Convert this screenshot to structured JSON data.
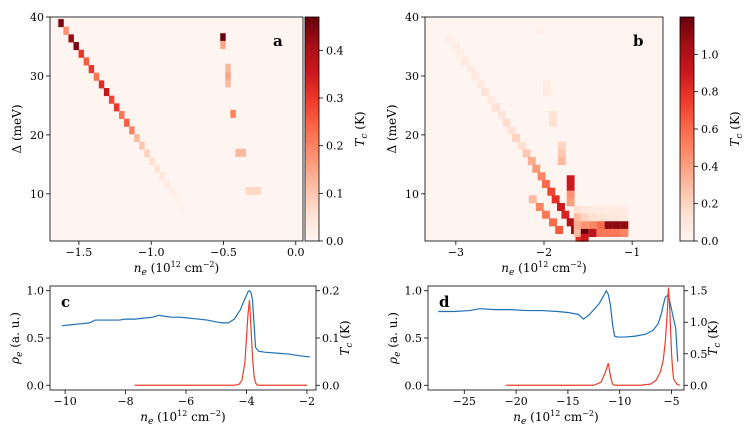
{
  "chart_data": [
    {
      "panel": "a",
      "type": "heatmap",
      "panel_label": "a",
      "xlabel": "n_e (10^12 cm^-2)",
      "ylabel": "Δ (meV)",
      "colorbar_label": "T_c (K)",
      "xlim": [
        -1.7,
        0.05
      ],
      "ylim": [
        2,
        40
      ],
      "xticks": [
        {
          "v": -1.5,
          "t": "−1.5"
        },
        {
          "v": -1.0,
          "t": "−1.0"
        },
        {
          "v": -0.5,
          "t": "−0.5"
        },
        {
          "v": 0.0,
          "t": "0.0"
        }
      ],
      "yticks": [
        {
          "v": 10,
          "t": "10"
        },
        {
          "v": 20,
          "t": "20"
        },
        {
          "v": 30,
          "t": "30"
        },
        {
          "v": 40,
          "t": "40"
        }
      ],
      "colorbar": {
        "min": 0,
        "max": 0.47,
        "ticks": [
          {
            "v": 0.0,
            "t": "0.0"
          },
          {
            "v": 0.1,
            "t": "0.1"
          },
          {
            "v": 0.2,
            "t": "0.2"
          },
          {
            "v": 0.3,
            "t": "0.3"
          },
          {
            "v": 0.4,
            "t": "0.4"
          }
        ]
      },
      "cell": {
        "dx": 0.035,
        "dy": 1.3
      },
      "cells": [
        [
          -1.625,
          39.0,
          0.45
        ],
        [
          -1.59,
          37.7,
          0.18
        ],
        [
          -1.555,
          36.4,
          0.42
        ],
        [
          -1.52,
          35.1,
          0.45
        ],
        [
          -1.485,
          33.8,
          0.3
        ],
        [
          -1.45,
          32.5,
          0.25
        ],
        [
          -1.415,
          31.2,
          0.3
        ],
        [
          -1.38,
          29.9,
          0.22
        ],
        [
          -1.345,
          28.6,
          0.32
        ],
        [
          -1.31,
          27.3,
          0.36
        ],
        [
          -1.275,
          26.0,
          0.28
        ],
        [
          -1.24,
          24.7,
          0.3
        ],
        [
          -1.205,
          23.4,
          0.22
        ],
        [
          -1.17,
          22.1,
          0.25
        ],
        [
          -1.135,
          20.8,
          0.2
        ],
        [
          -1.1,
          19.5,
          0.12
        ],
        [
          -1.065,
          18.2,
          0.1
        ],
        [
          -1.03,
          16.9,
          0.08
        ],
        [
          -0.995,
          15.6,
          0.06
        ],
        [
          -0.96,
          14.3,
          0.05
        ],
        [
          -0.925,
          13.0,
          0.04
        ],
        [
          -0.89,
          11.7,
          0.03
        ],
        [
          -0.855,
          10.4,
          0.02
        ],
        [
          -0.82,
          9.1,
          0.015
        ],
        [
          -0.785,
          7.8,
          0.01
        ],
        [
          -0.505,
          36.6,
          0.47
        ],
        [
          -0.505,
          35.3,
          0.15
        ],
        [
          -0.47,
          31.4,
          0.12
        ],
        [
          -0.47,
          30.1,
          0.15
        ],
        [
          -0.47,
          28.8,
          0.12
        ],
        [
          -0.435,
          23.6,
          0.2
        ],
        [
          -0.4,
          17.0,
          0.12
        ],
        [
          -0.365,
          17.0,
          0.12
        ],
        [
          -0.33,
          10.5,
          0.07
        ],
        [
          -0.295,
          10.5,
          0.07
        ],
        [
          -0.26,
          10.5,
          0.07
        ]
      ]
    },
    {
      "panel": "b",
      "type": "heatmap",
      "panel_label": "b",
      "xlabel": "n_e (10^12 cm^-2)",
      "ylabel": "Δ (meV)",
      "colorbar_label": "T_c (K)",
      "xlim": [
        -3.35,
        -0.65
      ],
      "ylim": [
        2,
        40
      ],
      "xticks": [
        {
          "v": -3,
          "t": "−3"
        },
        {
          "v": -2,
          "t": "−2"
        },
        {
          "v": -1,
          "t": "−1"
        }
      ],
      "yticks": [
        {
          "v": 10,
          "t": "10"
        },
        {
          "v": 20,
          "t": "20"
        },
        {
          "v": 30,
          "t": "30"
        },
        {
          "v": 40,
          "t": "40"
        }
      ],
      "colorbar": {
        "min": 0,
        "max": 1.2,
        "ticks": [
          {
            "v": 0.0,
            "t": "0.0"
          },
          {
            "v": 0.2,
            "t": "0.2"
          },
          {
            "v": 0.4,
            "t": "0.4"
          },
          {
            "v": 0.6,
            "t": "0.6"
          },
          {
            "v": 0.8,
            "t": "0.8"
          },
          {
            "v": 1.0,
            "t": "1.0"
          }
        ]
      },
      "cell": {
        "dx": 0.085,
        "dy": 1.3
      },
      "cells": [
        [
          -3.08,
          36.4,
          0.04
        ],
        [
          -3.0,
          35.1,
          0.05
        ],
        [
          -2.95,
          33.8,
          0.06
        ],
        [
          -2.9,
          32.5,
          0.08
        ],
        [
          -2.83,
          31.2,
          0.07
        ],
        [
          -2.78,
          29.9,
          0.1
        ],
        [
          -2.72,
          28.6,
          0.08
        ],
        [
          -2.67,
          27.3,
          0.12
        ],
        [
          -2.6,
          26.0,
          0.09
        ],
        [
          -2.55,
          24.7,
          0.14
        ],
        [
          -2.48,
          23.4,
          0.12
        ],
        [
          -2.43,
          22.1,
          0.16
        ],
        [
          -2.37,
          20.8,
          0.12
        ],
        [
          -2.32,
          19.5,
          0.2
        ],
        [
          -2.25,
          18.2,
          0.15
        ],
        [
          -2.2,
          16.9,
          0.25
        ],
        [
          -2.14,
          15.6,
          0.35
        ],
        [
          -2.09,
          14.3,
          0.42
        ],
        [
          -2.03,
          13.0,
          0.5
        ],
        [
          -1.98,
          11.7,
          0.6
        ],
        [
          -1.92,
          10.4,
          0.72
        ],
        [
          -1.87,
          9.1,
          0.8
        ],
        [
          -1.81,
          7.8,
          0.9
        ],
        [
          -1.76,
          6.5,
          0.85
        ],
        [
          -1.7,
          5.2,
          1.0
        ],
        [
          -1.65,
          3.9,
          1.1
        ],
        [
          -1.6,
          2.6,
          0.8
        ],
        [
          -2.13,
          9.1,
          0.3
        ],
        [
          -2.05,
          7.8,
          0.5
        ],
        [
          -1.98,
          6.5,
          0.55
        ],
        [
          -1.9,
          5.2,
          0.6
        ],
        [
          -1.83,
          3.9,
          0.65
        ],
        [
          -2.05,
          37.7,
          0.03
        ],
        [
          -1.97,
          28.6,
          0.06
        ],
        [
          -1.97,
          27.3,
          0.08
        ],
        [
          -1.9,
          23.4,
          0.12
        ],
        [
          -1.9,
          22.1,
          0.14
        ],
        [
          -1.8,
          18.2,
          0.2
        ],
        [
          -1.8,
          16.9,
          0.25
        ],
        [
          -1.8,
          15.6,
          0.3
        ],
        [
          -1.7,
          12.5,
          0.9
        ],
        [
          -1.7,
          11.2,
          0.9
        ],
        [
          -1.7,
          9.9,
          0.45
        ],
        [
          -1.7,
          8.6,
          0.4
        ],
        [
          -1.62,
          7.3,
          0.15
        ],
        [
          -1.62,
          6.0,
          0.3
        ],
        [
          -1.62,
          4.7,
          0.35
        ],
        [
          -1.62,
          3.4,
          0.3
        ],
        [
          -1.54,
          7.3,
          0.1
        ],
        [
          -1.54,
          6.0,
          0.2
        ],
        [
          -1.54,
          4.7,
          0.45
        ],
        [
          -1.54,
          3.4,
          1.2
        ],
        [
          -1.54,
          2.6,
          0.9
        ],
        [
          -1.45,
          7.3,
          0.08
        ],
        [
          -1.45,
          6.0,
          0.15
        ],
        [
          -1.45,
          4.7,
          0.5
        ],
        [
          -1.45,
          3.4,
          0.95
        ],
        [
          -1.36,
          7.3,
          0.08
        ],
        [
          -1.36,
          6.0,
          0.12
        ],
        [
          -1.36,
          4.7,
          0.6
        ],
        [
          -1.36,
          3.4,
          0.55
        ],
        [
          -1.27,
          7.3,
          0.08
        ],
        [
          -1.27,
          6.0,
          0.1
        ],
        [
          -1.27,
          4.7,
          1.1
        ],
        [
          -1.27,
          3.4,
          0.55
        ],
        [
          -1.18,
          7.3,
          0.08
        ],
        [
          -1.18,
          6.0,
          0.1
        ],
        [
          -1.18,
          4.7,
          1.1
        ],
        [
          -1.18,
          3.4,
          0.55
        ],
        [
          -1.09,
          7.3,
          0.06
        ],
        [
          -1.09,
          6.0,
          0.08
        ],
        [
          -1.09,
          4.7,
          1.1
        ],
        [
          -1.09,
          3.4,
          0.5
        ]
      ]
    },
    {
      "panel": "c",
      "type": "line",
      "panel_label": "c",
      "xlabel": "n_e (10^12 cm^-2)",
      "ylabel": "ρ_e (a. u.)",
      "y2label": "T_c (K)",
      "xlim": [
        -10.5,
        -1.7
      ],
      "ylim": [
        -0.05,
        1.05
      ],
      "y2lim": [
        -0.01,
        0.21
      ],
      "xticks": [
        {
          "v": -10,
          "t": "−10"
        },
        {
          "v": -8,
          "t": "−8"
        },
        {
          "v": -6,
          "t": "−6"
        },
        {
          "v": -4,
          "t": "−4"
        },
        {
          "v": -2,
          "t": "−2"
        }
      ],
      "yticks": [
        {
          "v": 0.0,
          "t": "0.0"
        },
        {
          "v": 0.5,
          "t": "0.5"
        },
        {
          "v": 1.0,
          "t": "1.0"
        }
      ],
      "y2ticks": [
        {
          "v": 0.0,
          "t": "0.0"
        },
        {
          "v": 0.1,
          "t": "0.1"
        },
        {
          "v": 0.2,
          "t": "0.2"
        }
      ],
      "series": [
        {
          "axis": "left",
          "color": "#1f6fb4",
          "x": [
            -10.1,
            -9.8,
            -9.5,
            -9.2,
            -9.0,
            -8.8,
            -8.5,
            -8.2,
            -8.0,
            -7.7,
            -7.4,
            -7.1,
            -6.9,
            -6.7,
            -6.5,
            -6.2,
            -5.9,
            -5.6,
            -5.3,
            -5.0,
            -4.8,
            -4.6,
            -4.4,
            -4.3,
            -4.2,
            -4.1,
            -4.0,
            -3.95,
            -3.9,
            -3.85,
            -3.8,
            -3.75,
            -3.7,
            -3.6,
            -3.4,
            -3.0,
            -2.6,
            -2.2,
            -1.9
          ],
          "y": [
            0.63,
            0.64,
            0.65,
            0.66,
            0.69,
            0.69,
            0.69,
            0.69,
            0.7,
            0.7,
            0.71,
            0.72,
            0.74,
            0.73,
            0.72,
            0.72,
            0.71,
            0.7,
            0.69,
            0.67,
            0.66,
            0.66,
            0.7,
            0.75,
            0.8,
            0.88,
            0.95,
            0.99,
            1.0,
            0.98,
            0.9,
            0.65,
            0.4,
            0.36,
            0.35,
            0.34,
            0.33,
            0.31,
            0.3
          ]
        },
        {
          "axis": "right",
          "color": "#e8402a",
          "x": [
            -7.7,
            -6.0,
            -4.4,
            -4.25,
            -4.15,
            -4.05,
            -4.0,
            -3.95,
            -3.9,
            -3.85,
            -3.8,
            -3.75,
            -3.7,
            -3.65,
            -3.6,
            -3.5,
            -2.0
          ],
          "y": [
            0.0,
            0.0,
            0.0,
            0.002,
            0.01,
            0.05,
            0.1,
            0.15,
            0.18,
            0.12,
            0.06,
            0.02,
            0.005,
            0.001,
            0.0,
            0.0,
            0.0
          ]
        }
      ]
    },
    {
      "panel": "d",
      "type": "line",
      "panel_label": "d",
      "xlabel": "n_e (10^12 cm^-2)",
      "ylabel": "ρ_e (a. u.)",
      "y2label": "T_c (K)",
      "xlim": [
        -28.5,
        -3.8
      ],
      "ylim": [
        -0.05,
        1.05
      ],
      "y2lim": [
        -0.075,
        1.575
      ],
      "xticks": [
        {
          "v": -25,
          "t": "−25"
        },
        {
          "v": -20,
          "t": "−20"
        },
        {
          "v": -15,
          "t": "−15"
        },
        {
          "v": -10,
          "t": "−10"
        },
        {
          "v": -5,
          "t": "−5"
        }
      ],
      "yticks": [
        {
          "v": 0.0,
          "t": "0.0"
        },
        {
          "v": 0.5,
          "t": "0.5"
        },
        {
          "v": 1.0,
          "t": "1.0"
        }
      ],
      "y2ticks": [
        {
          "v": 0.0,
          "t": "0.0"
        },
        {
          "v": 0.5,
          "t": "0.5"
        },
        {
          "v": 1.0,
          "t": "1.0"
        },
        {
          "v": 1.5,
          "t": "1.5"
        }
      ],
      "series": [
        {
          "axis": "left",
          "color": "#1f6fb4",
          "x": [
            -27.5,
            -26.0,
            -24.5,
            -23.5,
            -22.0,
            -20.5,
            -19.0,
            -17.5,
            -16.0,
            -15.0,
            -14.0,
            -13.5,
            -13.0,
            -12.5,
            -12.0,
            -11.6,
            -11.3,
            -11.1,
            -10.9,
            -10.7,
            -10.5,
            -10.2,
            -9.5,
            -8.5,
            -7.5,
            -6.8,
            -6.3,
            -6.0,
            -5.8,
            -5.6,
            -5.4,
            -5.2,
            -5.0,
            -4.8,
            -4.6,
            -4.4
          ],
          "y": [
            0.78,
            0.78,
            0.79,
            0.81,
            0.8,
            0.8,
            0.79,
            0.79,
            0.78,
            0.77,
            0.75,
            0.7,
            0.74,
            0.8,
            0.86,
            0.94,
            1.0,
            0.96,
            0.85,
            0.65,
            0.52,
            0.51,
            0.51,
            0.52,
            0.54,
            0.58,
            0.65,
            0.75,
            0.85,
            0.93,
            0.95,
            0.9,
            0.8,
            0.7,
            0.6,
            0.25
          ]
        },
        {
          "axis": "right",
          "color": "#e8402a",
          "x": [
            -21.0,
            -15.0,
            -12.5,
            -11.8,
            -11.4,
            -11.1,
            -10.9,
            -10.7,
            -10.5,
            -10.0,
            -8.0,
            -7.0,
            -6.5,
            -6.1,
            -5.8,
            -5.6,
            -5.4,
            -5.3,
            -5.2,
            -5.1,
            -5.0,
            -4.9,
            -4.8,
            -4.5,
            -4.2
          ],
          "y": [
            0.0,
            0.0,
            0.0,
            0.05,
            0.2,
            0.35,
            0.15,
            0.02,
            0.0,
            0.0,
            0.0,
            0.02,
            0.08,
            0.2,
            0.4,
            0.7,
            1.2,
            1.55,
            1.3,
            0.9,
            0.5,
            0.25,
            0.1,
            0.02,
            0.0
          ]
        }
      ]
    }
  ]
}
